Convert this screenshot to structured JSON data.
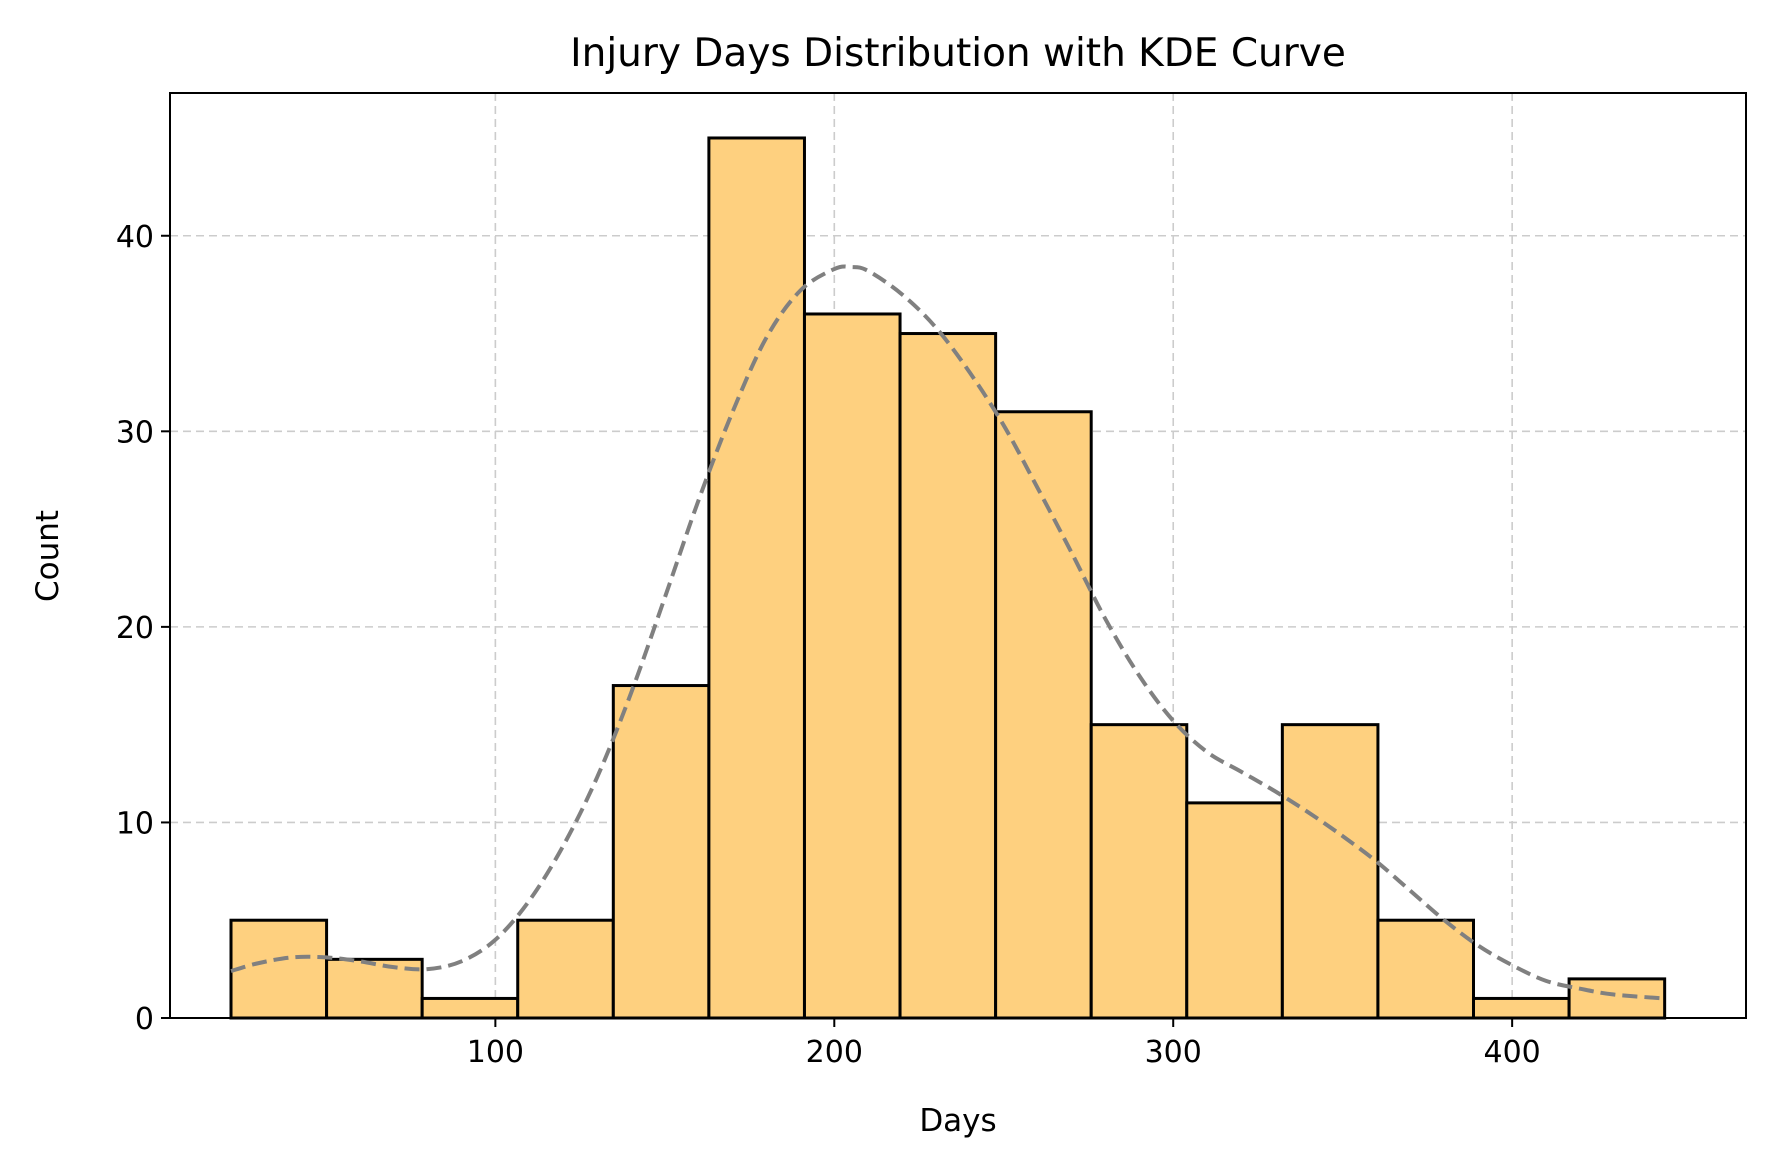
{
  "chart_data": {
    "type": "bar",
    "subtype": "histogram",
    "title": "Injury Days Distribution with KDE Curve",
    "xlabel": "Days",
    "ylabel": "Count",
    "xlim": [
      4,
      469
    ],
    "ylim": [
      0,
      47.3
    ],
    "x_ticks": [
      100,
      200,
      300,
      400
    ],
    "y_ticks": [
      0,
      10,
      20,
      30,
      40
    ],
    "grid": true,
    "bin_start": 22,
    "bin_width": 28.2,
    "values": [
      5,
      3,
      1,
      5,
      17,
      45,
      36,
      35,
      31,
      15,
      11,
      15,
      5,
      1,
      2
    ],
    "kde_curve": {
      "x": [
        22,
        30,
        40,
        50,
        60,
        70,
        80,
        90,
        100,
        110,
        120,
        130,
        140,
        150,
        160,
        170,
        180,
        190,
        200,
        205,
        210,
        220,
        230,
        240,
        250,
        260,
        270,
        280,
        290,
        300,
        310,
        320,
        330,
        340,
        350,
        360,
        370,
        380,
        390,
        400,
        410,
        420,
        430,
        445
      ],
      "y": [
        2.4,
        2.8,
        3.1,
        3.1,
        2.9,
        2.6,
        2.5,
        2.9,
        4.0,
        6.0,
        8.8,
        12.3,
        16.6,
        21.5,
        26.5,
        31.0,
        34.8,
        37.2,
        38.3,
        38.4,
        38.2,
        37.0,
        35.3,
        33.0,
        30.3,
        27.1,
        23.8,
        20.4,
        17.5,
        15.2,
        13.6,
        12.6,
        11.6,
        10.5,
        9.3,
        8.0,
        6.5,
        5.0,
        3.7,
        2.7,
        1.9,
        1.5,
        1.2,
        1.0
      ]
    },
    "colors": {
      "bar_fill": "#fed07f",
      "bar_edge": "#000000",
      "kde_line": "#808080",
      "grid": "#cccccc"
    }
  }
}
